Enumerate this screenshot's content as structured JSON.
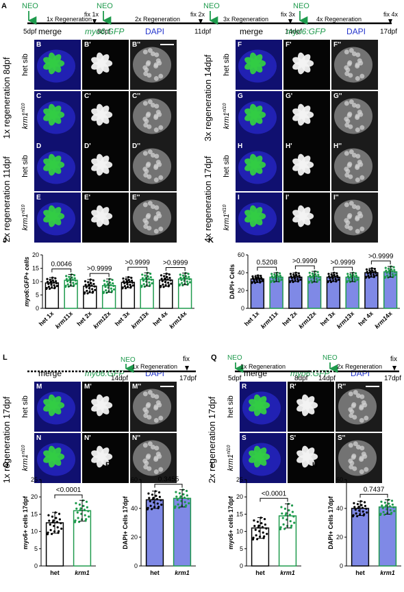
{
  "colors": {
    "green": "#1e9a4c",
    "gfp": "#33cc44",
    "blue_bar": "#7f89e6",
    "white_bar": "#ffffff",
    "dapi_bg": "#1b1b1b",
    "merge_bg": "#101070"
  },
  "panel_a": {
    "letter": "A",
    "neo": "NEO",
    "days": [
      "5dpf",
      "8dpf",
      "11dpf",
      "14dpf",
      "17dpf"
    ],
    "fix": [
      "fix 1x",
      "fix 2x",
      "fix 3x",
      "fix 4x"
    ],
    "regen": [
      "1x Regeneration",
      "2x Regeneration",
      "3x Regeneration",
      "4x Regeneration"
    ]
  },
  "col_headers": {
    "merge": "merge",
    "gfp": "myo6:GFP",
    "dapi": "DAPI"
  },
  "geno": {
    "sib": "het sib",
    "mut": "krm1",
    "mut_sup": "nl10"
  },
  "blocks": [
    {
      "side": "1x regeneration 8dpf",
      "letters": [
        [
          "B",
          "B'",
          "B''"
        ],
        [
          "C",
          "C'",
          "C''"
        ]
      ]
    },
    {
      "side": "3x regeneration 14dpf",
      "letters": [
        [
          "F",
          "F'",
          "F''"
        ],
        [
          "G",
          "G'",
          "G''"
        ]
      ]
    },
    {
      "side": "2x regeneration 11dpf",
      "letters": [
        [
          "D",
          "D'",
          "D''"
        ],
        [
          "E",
          "E'",
          "E''"
        ]
      ]
    },
    {
      "side": "4x regeneration 17dpf",
      "letters": [
        [
          "H",
          "H'",
          "H''"
        ],
        [
          "I",
          "I'",
          "I''"
        ]
      ]
    },
    {
      "side": "1x regeneration 17dpf",
      "letters": [
        [
          "M",
          "M'",
          "M''"
        ],
        [
          "N",
          "N'",
          "N''"
        ]
      ]
    },
    {
      "side": "2x regeneration 17dpf",
      "letters": [
        [
          "R",
          "R'",
          "R''"
        ],
        [
          "S",
          "S'",
          "S''"
        ]
      ]
    }
  ],
  "panel_l": {
    "letter": "L",
    "neo": "NEO",
    "days": [
      "14dpf",
      "17dpf"
    ],
    "regen": "1x Regeneration",
    "fix": "fix"
  },
  "panel_q": {
    "letter": "Q",
    "neo": "NEO",
    "days": [
      "5dpf",
      "8dpf",
      "14dpf",
      "17dpf"
    ],
    "regen": [
      "1x Regeneration",
      "2x Regeneration"
    ],
    "fix": "fix"
  },
  "chart_data": [
    {
      "id": "J",
      "type": "bar",
      "ylabel": "myo6:GFP+ cells",
      "ylim": [
        0,
        20
      ],
      "yticks": [
        0,
        5,
        10,
        15,
        20
      ],
      "categories": [
        "het 1x",
        "krm11x",
        "het 2x",
        "krm12x",
        "het 3x",
        "krm13x",
        "het 4x",
        "krm14x"
      ],
      "values": [
        9.5,
        10.5,
        8.3,
        8.5,
        9.7,
        10.8,
        10.6,
        11.0
      ],
      "errors": [
        2.0,
        2.2,
        2.5,
        2.5,
        2.0,
        2.5,
        2.4,
        2.2
      ],
      "pvalues": [
        "0.0046",
        ">0.9999",
        ">0.9999",
        ">0.9999"
      ]
    },
    {
      "id": "K",
      "type": "bar",
      "ylabel": "DAPI+ Cells",
      "ylim": [
        0,
        60
      ],
      "yticks": [
        0,
        20,
        40,
        60
      ],
      "categories": [
        "het 1x",
        "krm11x",
        "het 2x",
        "krm12x",
        "het 3x",
        "krm13x",
        "het 4x",
        "krm14x"
      ],
      "values": [
        33,
        35,
        35,
        35.5,
        35,
        35,
        40,
        41
      ],
      "errors": [
        4,
        5,
        5,
        6,
        5,
        5,
        5,
        6
      ],
      "pvalues": [
        "0.5208",
        ">0.9999",
        ">0.9999",
        ">0.9999"
      ]
    },
    {
      "id": "O",
      "type": "bar",
      "ylabel": "myo6+ cells 17dpf",
      "ylim": [
        0,
        25
      ],
      "yticks": [
        0,
        5,
        10,
        15,
        20,
        25
      ],
      "categories": [
        "het",
        "krm1"
      ],
      "values": [
        12.5,
        16.0
      ],
      "errors": [
        3.0,
        3.0
      ],
      "pvalues": [
        "<0.0001"
      ]
    },
    {
      "id": "P",
      "type": "bar",
      "ylabel": "DAPI+ Cells 17dpf",
      "ylim": [
        0,
        60
      ],
      "yticks": [
        0,
        20,
        40,
        60
      ],
      "categories": [
        "het",
        "krm1"
      ],
      "values": [
        46,
        47
      ],
      "errors": [
        6,
        6
      ],
      "pvalues": [
        "0.3455"
      ]
    },
    {
      "id": "T",
      "type": "bar",
      "ylabel": "myo6+ cells 17dpf",
      "ylim": [
        0,
        25
      ],
      "yticks": [
        0,
        5,
        10,
        15,
        20,
        25
      ],
      "categories": [
        "het",
        "krm1"
      ],
      "values": [
        11.0,
        14.5
      ],
      "errors": [
        3.0,
        3.5
      ],
      "pvalues": [
        "<0.0001"
      ]
    },
    {
      "id": "U",
      "type": "bar",
      "ylabel": "DAPI+ Cells 17dpf",
      "ylim": [
        0,
        60
      ],
      "yticks": [
        0,
        20,
        40,
        60
      ],
      "categories": [
        "het",
        "krm1"
      ],
      "values": [
        40,
        41
      ],
      "errors": [
        5,
        5
      ],
      "pvalues": [
        "0.7437"
      ]
    }
  ]
}
